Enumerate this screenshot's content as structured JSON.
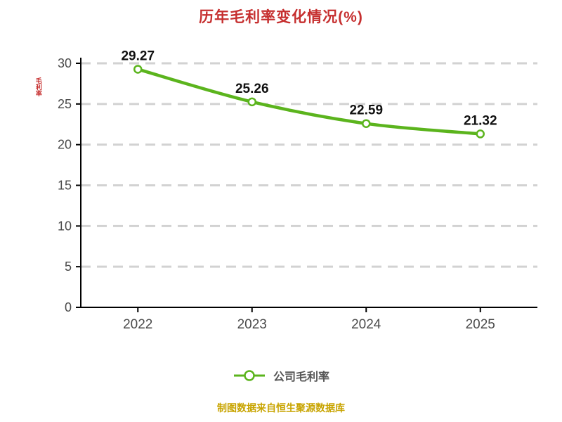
{
  "chart_data": {
    "type": "line",
    "title": "历年毛利率变化情况(%)",
    "categories": [
      "2022",
      "2023",
      "2024",
      "2025"
    ],
    "series": [
      {
        "name": "公司毛利率",
        "values": [
          29.27,
          25.26,
          22.59,
          21.32
        ]
      }
    ],
    "ylabel": "毛利率",
    "xlabel": "",
    "ylim": [
      0,
      30
    ],
    "yticks": [
      0,
      5,
      10,
      15,
      20,
      25,
      30
    ],
    "grid": "horizontal-dashed",
    "legend_position": "bottom",
    "data_labels": true
  },
  "legend": {
    "label": "公司毛利率"
  },
  "footer": {
    "source_note": "制图数据来自恒生聚源数据库"
  },
  "colors": {
    "title": "#c62f2f",
    "line": "#5bb41d",
    "marker_fill": "#ffffff",
    "grid": "#d2d2d2",
    "axis": "#000000",
    "tick_label": "#4a4a4a",
    "data_label": "#111111",
    "legend_text": "#555555",
    "footer": "#c8a400",
    "ylabel": "#c62f2f"
  }
}
